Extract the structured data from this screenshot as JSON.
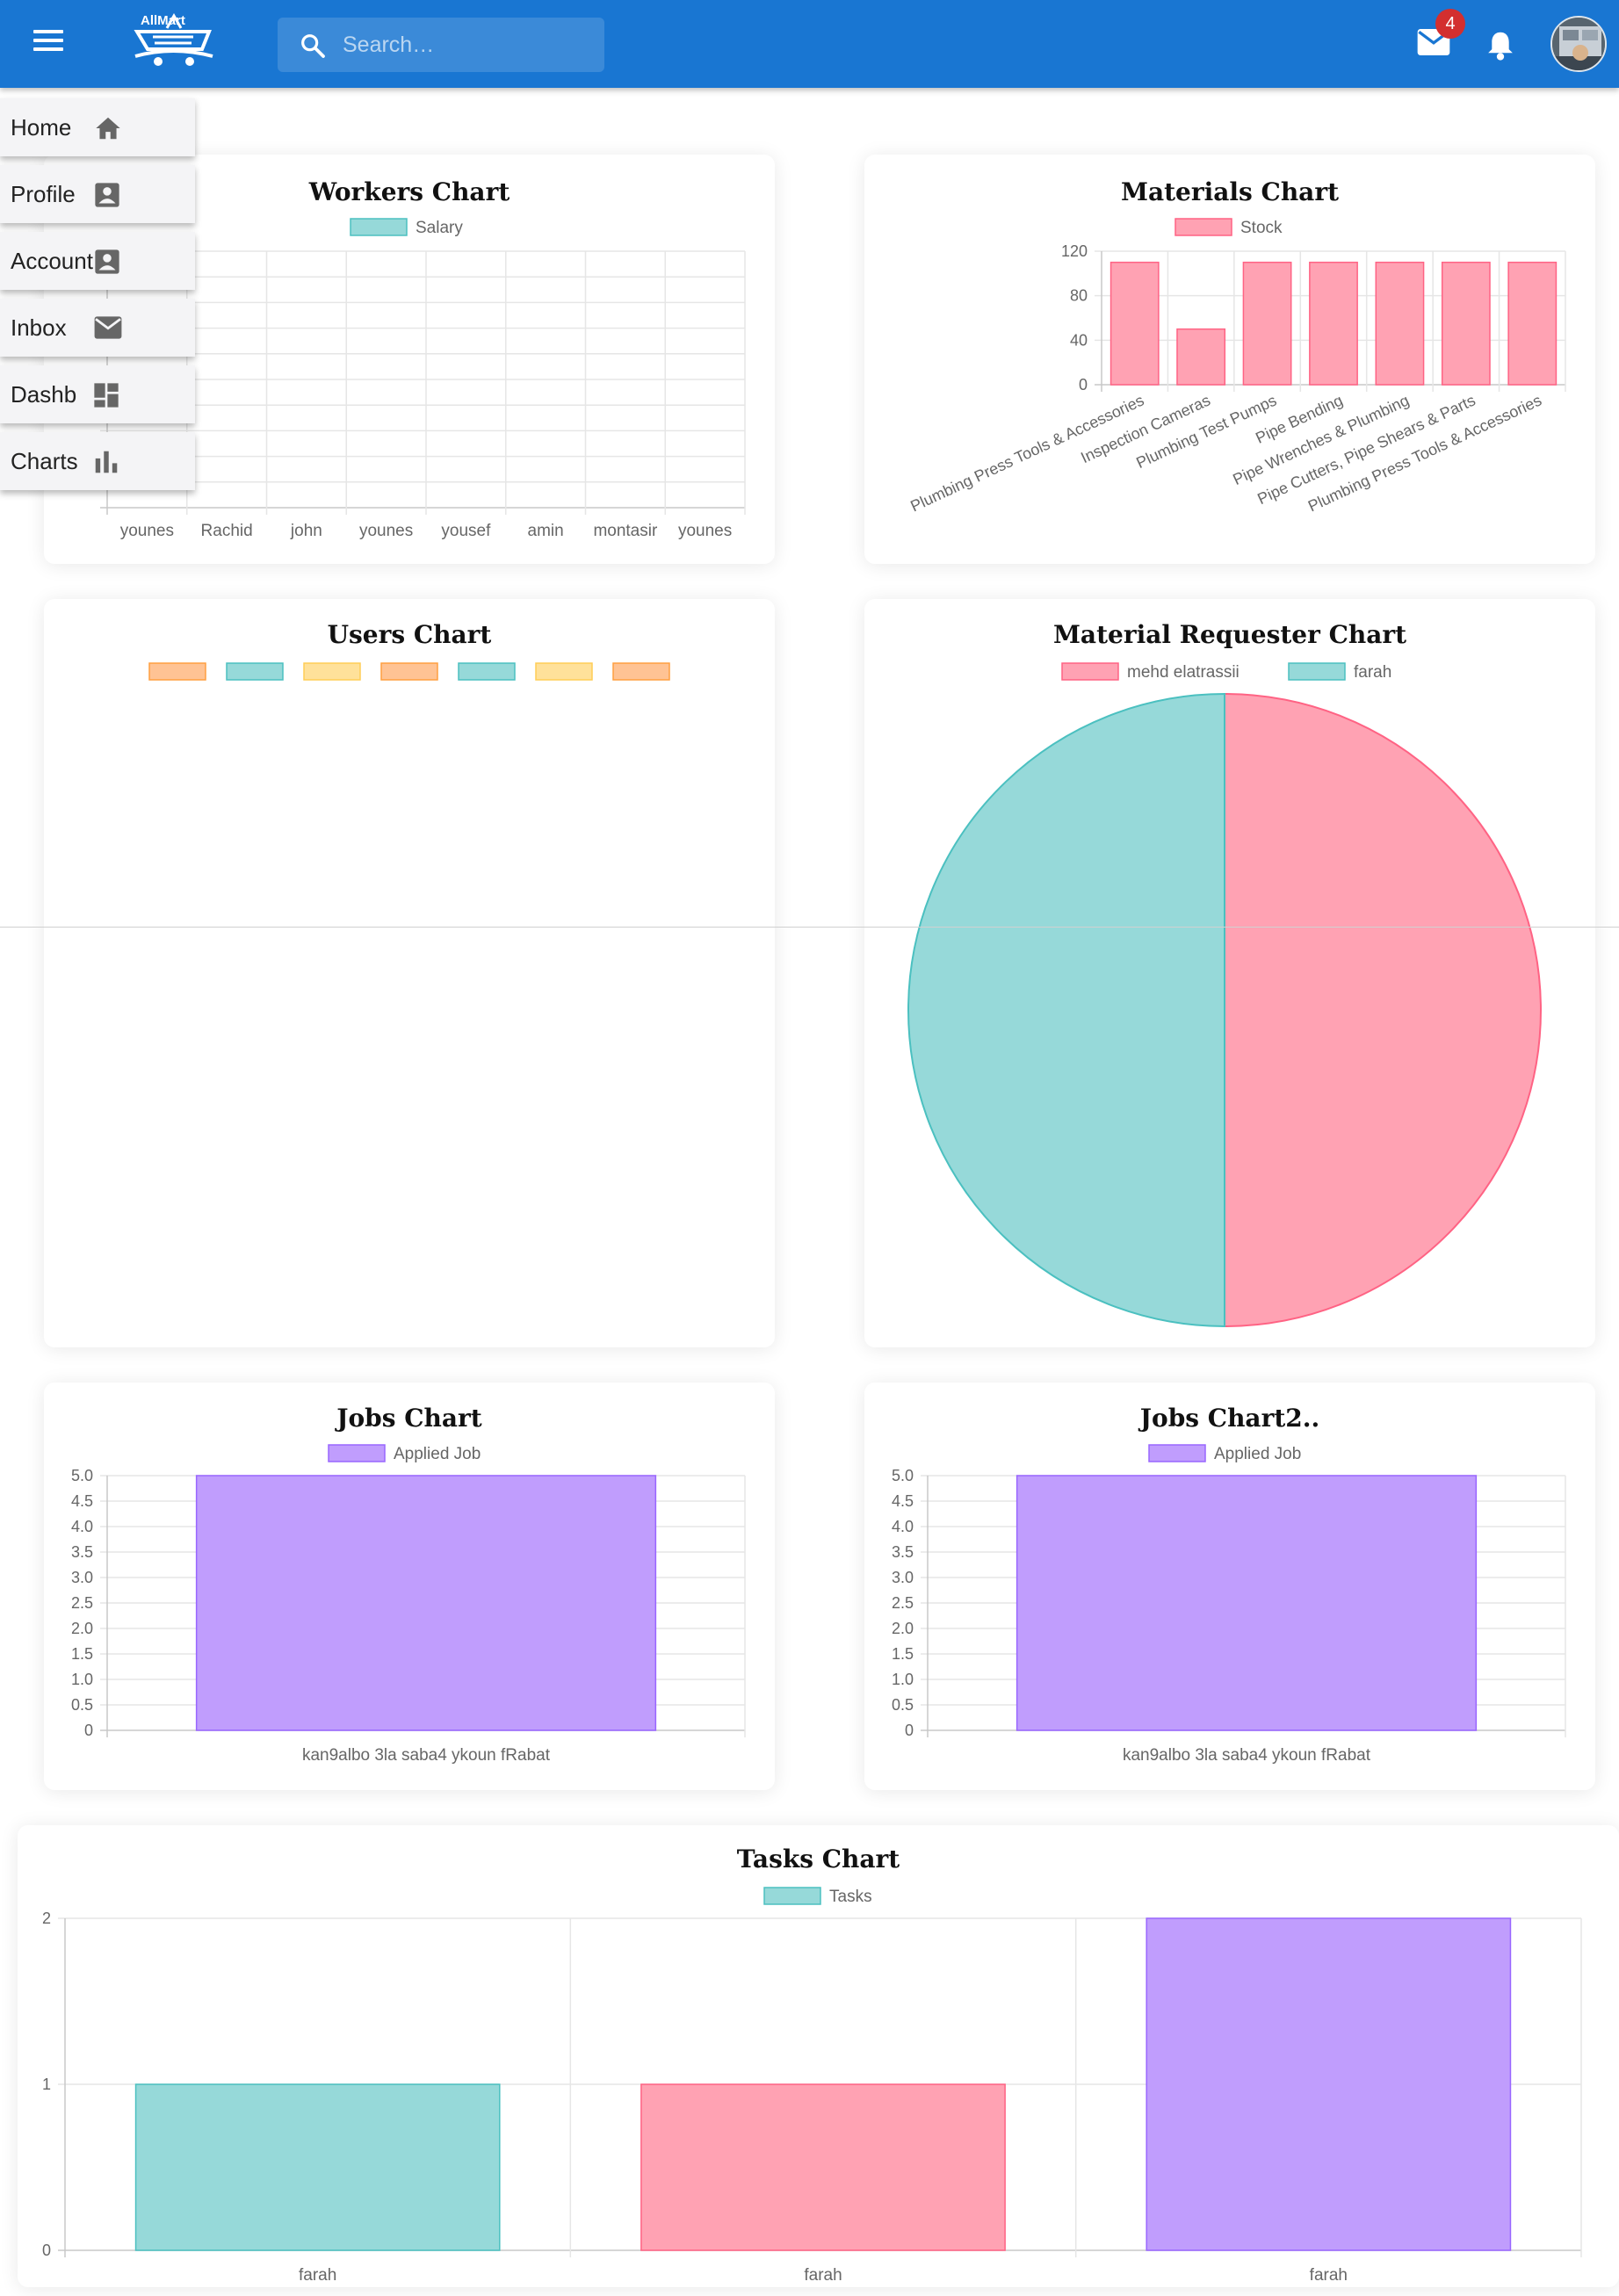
{
  "appbar": {
    "logo_text": "AllMart",
    "search_placeholder": "Search…",
    "mail_badge": "4"
  },
  "sidebar": {
    "items": [
      {
        "label": "Home",
        "icon": "home-icon"
      },
      {
        "label": "Profile",
        "icon": "account-box-icon"
      },
      {
        "label": "Account",
        "icon": "account-box-icon"
      },
      {
        "label": "Inbox",
        "icon": "mail-icon"
      },
      {
        "label": "Dashb",
        "icon": "dashboard-icon"
      },
      {
        "label": "Charts",
        "icon": "bar-chart-icon"
      }
    ]
  },
  "colors": {
    "teal": "#96d9d9",
    "teal_border": "#4bc0c0",
    "pink": "#ffa2b3",
    "pink_border": "#ff6384",
    "purple": "#c09dfd",
    "purple_border": "#9966ff",
    "orange": "#ffc394",
    "yellow": "#ffe19a"
  },
  "chart_data": [
    {
      "id": "workers",
      "type": "bar",
      "title": "Workers Chart",
      "legend": [
        "Salary"
      ],
      "categories": [
        "younes",
        "Rachid",
        "john",
        "younes",
        "yousef",
        "amin",
        "montasir",
        "younes"
      ],
      "series": [
        {
          "name": "Salary",
          "values": [
            0,
            0,
            0,
            0,
            0,
            0,
            0,
            0
          ]
        }
      ]
    },
    {
      "id": "materials",
      "type": "bar",
      "title": "Materials Chart",
      "legend": [
        "Stock"
      ],
      "categories": [
        "Plumbing Press Tools & Accessories",
        "Inspection Cameras",
        "Plumbing Test Pumps",
        "Pipe Bending",
        "Pipe Wrenches & Plumbing",
        "Pipe Cutters, Pipe Shears & Parts",
        "Plumbing Press Tools & Accessories"
      ],
      "series": [
        {
          "name": "Stock",
          "values": [
            110,
            50,
            110,
            110,
            110,
            110,
            110
          ]
        }
      ],
      "ylim": [
        0,
        120
      ],
      "yticks": [
        "120",
        "80",
        "40",
        "0"
      ]
    },
    {
      "id": "users",
      "type": "pie",
      "title": "Users Chart",
      "legend": [
        "",
        "",
        "",
        "",
        "",
        "",
        ""
      ],
      "values": []
    },
    {
      "id": "requester",
      "type": "pie",
      "title": "Material Requester Chart",
      "legend": [
        "mehd  elatrassii",
        "farah"
      ],
      "values": [
        1,
        1
      ]
    },
    {
      "id": "jobs",
      "type": "bar",
      "title": "Jobs Chart",
      "legend": [
        "Applied Job"
      ],
      "categories": [
        "kan9albo 3la saba4 ykoun fRabat"
      ],
      "series": [
        {
          "name": "Applied Job",
          "values": [
            5
          ]
        }
      ],
      "ylim": [
        0,
        5
      ],
      "yticks": [
        "5.0",
        "4.5",
        "4.0",
        "3.5",
        "3.0",
        "2.5",
        "2.0",
        "1.5",
        "1.0",
        "0.5",
        "0"
      ]
    },
    {
      "id": "jobs2",
      "type": "bar",
      "title": "Jobs Chart2..",
      "legend": [
        "Applied Job"
      ],
      "categories": [
        "kan9albo 3la saba4 ykoun fRabat"
      ],
      "series": [
        {
          "name": "Applied Job",
          "values": [
            5
          ]
        }
      ],
      "ylim": [
        0,
        5
      ],
      "yticks": [
        "5.0",
        "4.5",
        "4.0",
        "3.5",
        "3.0",
        "2.5",
        "2.0",
        "1.5",
        "1.0",
        "0.5",
        "0"
      ]
    },
    {
      "id": "tasks",
      "type": "bar",
      "title": "Tasks Chart",
      "legend": [
        "Tasks"
      ],
      "categories": [
        "farah",
        "farah",
        "farah"
      ],
      "series": [
        {
          "name": "Tasks",
          "values": [
            1,
            1,
            2
          ]
        }
      ],
      "ylim": [
        0,
        2
      ],
      "yticks": [
        "2",
        "1",
        "0"
      ]
    }
  ]
}
